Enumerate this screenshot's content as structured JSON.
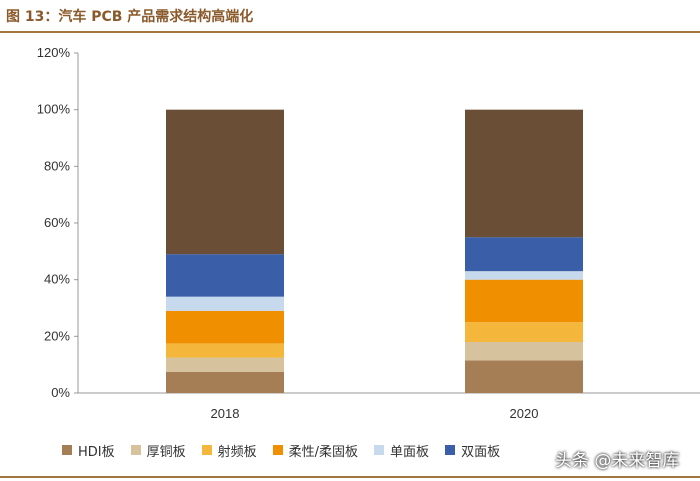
{
  "figure_title": "图 13：汽车 PCB 产品需求结构高端化",
  "watermark": "头条 @未来智库",
  "colors": {
    "title": "#8b5a2b",
    "rule": "#a0773f",
    "HDI板": "#a57e55",
    "厚铜板": "#d7c29e",
    "射频板": "#f4b63b",
    "柔性/柔固板": "#f08f00",
    "单面板": "#c7d9ec",
    "双面板": "#3a5ea8",
    "其他": "#6a4e35"
  },
  "chart_data": {
    "type": "bar",
    "stacked": true,
    "categories": [
      "2018",
      "2020"
    ],
    "yticks": [
      "0%",
      "20%",
      "40%",
      "60%",
      "80%",
      "100%",
      "120%"
    ],
    "ylim": [
      0,
      120
    ],
    "series": [
      {
        "name": "HDI板",
        "values": [
          7.5,
          11.5
        ]
      },
      {
        "name": "厚铜板",
        "values": [
          5,
          6.5
        ]
      },
      {
        "name": "射频板",
        "values": [
          5,
          7
        ]
      },
      {
        "name": "柔性/柔固板",
        "values": [
          11.5,
          15
        ]
      },
      {
        "name": "单面板",
        "values": [
          5,
          3
        ]
      },
      {
        "name": "双面板",
        "values": [
          15,
          12
        ]
      },
      {
        "values": [
          51,
          45
        ]
      }
    ],
    "legend": [
      "HDI板",
      "厚铜板",
      "射频板",
      "柔性/柔固板",
      "单面板",
      "双面板"
    ],
    "legend_position": "bottom",
    "grid": false
  }
}
